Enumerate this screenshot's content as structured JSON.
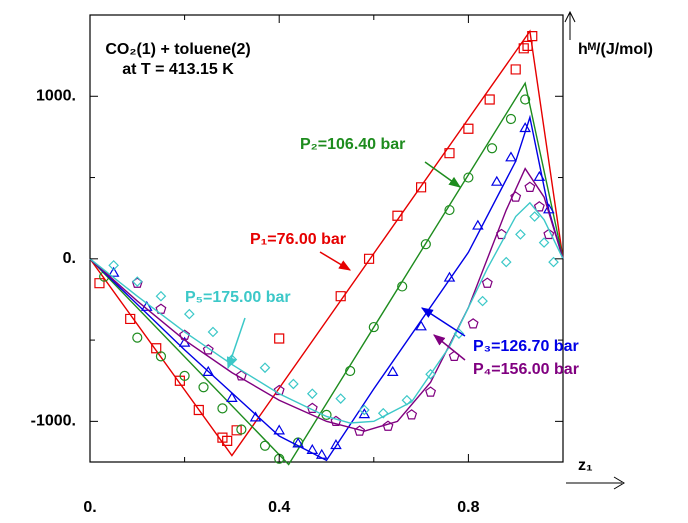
{
  "chart_data": {
    "type": "scatter-fit",
    "title_lines": [
      "CO₂(1) + toluene(2)",
      "at T = 413.15 K"
    ],
    "xlabel": "z₁",
    "ylabel": "hᴹ/(J/mol)",
    "xlim": [
      0,
      1
    ],
    "ylim": [
      -1250,
      1500
    ],
    "xticks": [
      {
        "value": 0,
        "label": "0."
      },
      0.4,
      0.8
    ],
    "yticks": [
      {
        "value": -1000,
        "label": "-1000."
      },
      {
        "value": 0,
        "label": "0."
      },
      {
        "value": 1000,
        "label": "1000."
      }
    ],
    "xminorticks": [
      0.2,
      0.6,
      1.0
    ],
    "yminorticks": [
      -500,
      500
    ],
    "series": [
      {
        "name": "P₁=76.00 bar",
        "color": "#e60000",
        "marker": "square",
        "x": [
          0.02,
          0.085,
          0.14,
          0.19,
          0.23,
          0.28,
          0.29,
          0.31,
          0.4,
          0.53,
          0.59,
          0.65,
          0.7,
          0.76,
          0.8,
          0.845,
          0.9,
          0.917,
          0.925,
          0.935
        ],
        "values": [
          -150,
          -370,
          -550,
          -750,
          -930,
          -1100,
          -1120,
          -1055,
          -490,
          -230,
          0,
          265,
          440,
          650,
          800,
          980,
          1165,
          1295,
          1310,
          1370
        ],
        "fit_x": [
          0,
          0.3,
          0.93,
          1.0
        ],
        "fit_values": [
          0,
          -1210,
          1400,
          0
        ]
      },
      {
        "name": "P₂=106.40 bar",
        "color": "#1e8c1e",
        "marker": "circle",
        "x": [
          0.03,
          0.1,
          0.15,
          0.2,
          0.24,
          0.28,
          0.32,
          0.37,
          0.4,
          0.44,
          0.5,
          0.55,
          0.6,
          0.66,
          0.71,
          0.76,
          0.8,
          0.85,
          0.89,
          0.92
        ],
        "values": [
          -110,
          -485,
          -600,
          -720,
          -790,
          -920,
          -1050,
          -1150,
          -1230,
          -1130,
          -960,
          -690,
          -420,
          -170,
          90,
          300,
          500,
          680,
          860,
          980
        ],
        "fit_x": [
          0,
          0.42,
          0.92,
          1.0
        ],
        "fit_values": [
          0,
          -1265,
          1080,
          0
        ]
      },
      {
        "name": "P₃=126.70 bar",
        "color": "#0000e6",
        "marker": "triangle",
        "x": [
          0.05,
          0.12,
          0.2,
          0.25,
          0.3,
          0.35,
          0.4,
          0.44,
          0.47,
          0.49,
          0.52,
          0.58,
          0.64,
          0.7,
          0.76,
          0.82,
          0.86,
          0.89,
          0.92,
          0.95,
          0.97
        ],
        "values": [
          -90,
          -300,
          -520,
          -700,
          -860,
          -980,
          -1060,
          -1140,
          -1180,
          -1210,
          -1150,
          -960,
          -700,
          -420,
          -120,
          200,
          470,
          620,
          800,
          500,
          300
        ],
        "fit_x": [
          0,
          0.2,
          0.4,
          0.5,
          0.6,
          0.8,
          0.9,
          0.93,
          0.97,
          1.0
        ],
        "fit_values": [
          0,
          -560,
          -1090,
          -1240,
          -800,
          40,
          600,
          870,
          300,
          0
        ]
      },
      {
        "name": "P₄=156.00 bar",
        "color": "#800080",
        "marker": "pentagon",
        "x": [
          0.1,
          0.15,
          0.2,
          0.25,
          0.32,
          0.4,
          0.47,
          0.52,
          0.57,
          0.63,
          0.68,
          0.72,
          0.77,
          0.81,
          0.84,
          0.87,
          0.9,
          0.93,
          0.95,
          0.97
        ],
        "values": [
          -150,
          -310,
          -470,
          -560,
          -720,
          -810,
          -920,
          -1000,
          -1060,
          -1030,
          -960,
          -820,
          -600,
          -400,
          -150,
          150,
          380,
          440,
          320,
          150
        ],
        "fit_x": [
          0,
          0.1,
          0.2,
          0.3,
          0.4,
          0.5,
          0.58,
          0.65,
          0.72,
          0.8,
          0.88,
          0.92,
          0.96,
          1.0
        ],
        "fit_values": [
          0,
          -260,
          -500,
          -700,
          -870,
          -1000,
          -1060,
          -1000,
          -760,
          -300,
          300,
          555,
          380,
          0
        ]
      },
      {
        "name": "P₅=175.00 bar",
        "color": "#3cc8c8",
        "marker": "diamond",
        "x": [
          0.05,
          0.1,
          0.15,
          0.21,
          0.26,
          0.3,
          0.37,
          0.43,
          0.47,
          0.53,
          0.58,
          0.62,
          0.67,
          0.72,
          0.78,
          0.83,
          0.88,
          0.91,
          0.94,
          0.96,
          0.98
        ],
        "values": [
          -40,
          -140,
          -230,
          -340,
          -450,
          -620,
          -670,
          -770,
          -830,
          -860,
          -930,
          -950,
          -870,
          -710,
          -460,
          -260,
          -20,
          150,
          260,
          100,
          -20
        ],
        "fit_x": [
          0,
          0.1,
          0.2,
          0.3,
          0.4,
          0.5,
          0.55,
          0.6,
          0.68,
          0.76,
          0.84,
          0.9,
          0.93,
          0.96,
          1.0
        ],
        "fit_values": [
          0,
          -230,
          -450,
          -650,
          -830,
          -970,
          -1010,
          -1000,
          -880,
          -540,
          -60,
          260,
          345,
          240,
          0
        ]
      }
    ]
  }
}
